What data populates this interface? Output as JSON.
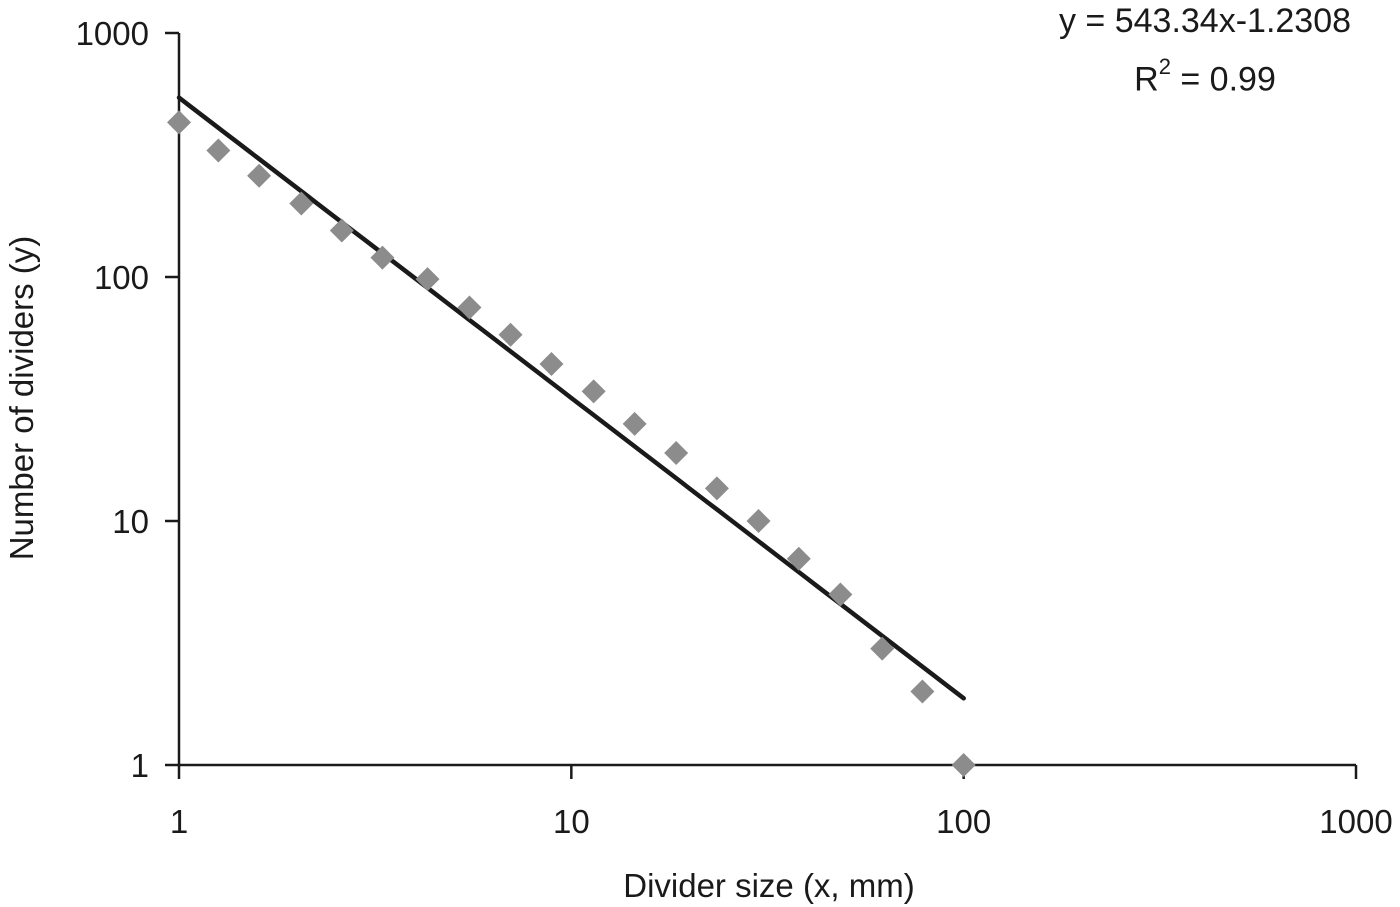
{
  "chart_data": {
    "type": "scatter",
    "title": "",
    "xlabel": "Divider size (x, mm)",
    "ylabel": "Number of dividers (y)",
    "xscale": "log",
    "yscale": "log",
    "xlim": [
      1,
      1000
    ],
    "ylim": [
      1,
      1000
    ],
    "x_ticks": [
      "1",
      "10",
      "100",
      "1000"
    ],
    "y_ticks": [
      "1",
      "10",
      "100",
      "1000"
    ],
    "grid": false,
    "series": [
      {
        "marker": "diamond",
        "color": "#8c8c8c",
        "x": [
          1,
          1.26,
          1.6,
          2.05,
          2.6,
          3.3,
          4.3,
          5.5,
          7,
          8.9,
          11.4,
          14.5,
          18.5,
          23.5,
          30,
          38,
          48.5,
          62,
          78.5,
          100
        ],
        "y": [
          430,
          330,
          260,
          200,
          155,
          120,
          98,
          75,
          58,
          44,
          34,
          25,
          19,
          13.6,
          10,
          7,
          5,
          3,
          2,
          1
        ]
      }
    ],
    "trendline": {
      "type": "power",
      "a": 543.34,
      "b": -1.2308,
      "x_range": [
        1,
        100
      ],
      "color": "#1a1a1a",
      "equation_label": "y = 543.34x-1.2308",
      "r2_label_prefix": "R",
      "r2_label_sup": "2",
      "r2_label_value": " = 0.99"
    }
  }
}
